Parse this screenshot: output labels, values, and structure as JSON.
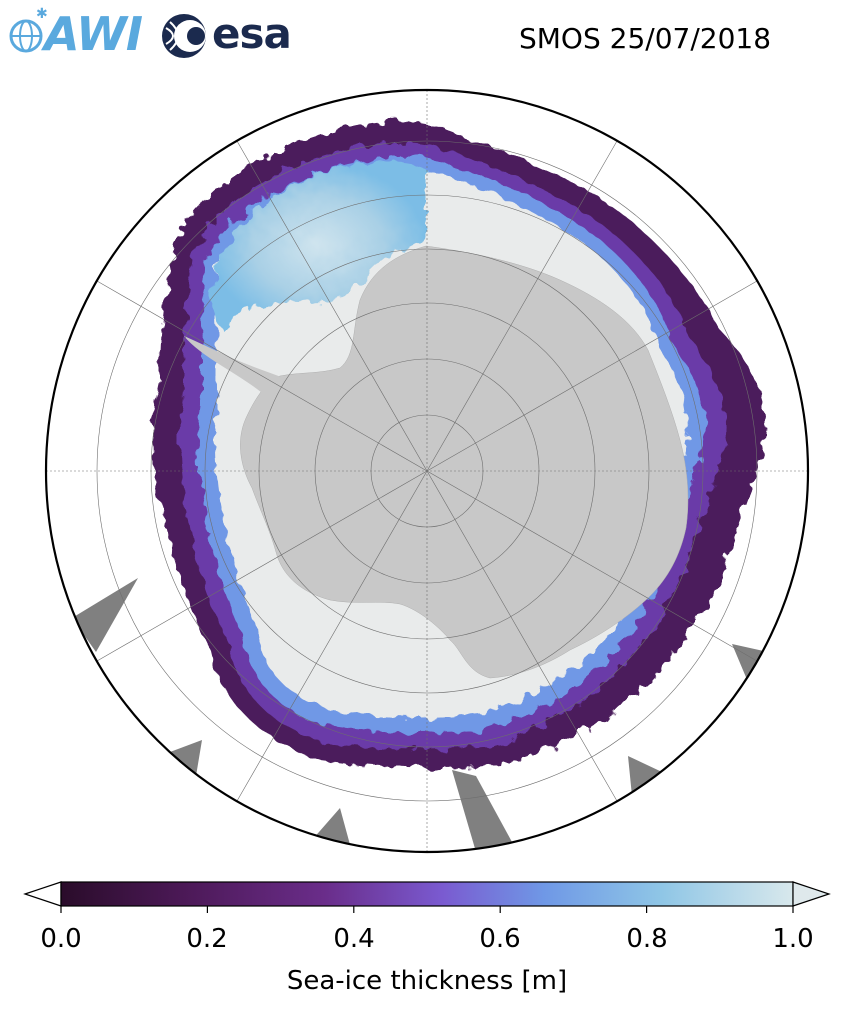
{
  "header": {
    "title": "SMOS 25/07/2018",
    "logos": [
      {
        "name": "awi-logo",
        "text": "AWI",
        "color": "#5aa9de"
      },
      {
        "name": "esa-logo",
        "text": "esa",
        "color": "#1b2a4e"
      }
    ]
  },
  "map": {
    "projection": "south-polar-stereographic",
    "region": "Antarctica / Southern Ocean",
    "graticule": true,
    "colors": {
      "land": "#c8c8c8",
      "thick_ice": "#e9ebeb",
      "ice_edge": "#4b1f5c",
      "mid_ice": "#6fa2e6",
      "no_data": "#808080",
      "ocean": "#ffffff"
    }
  },
  "colorbar": {
    "label": "Sea-ice thickness [m]",
    "ticks": [
      "0.0",
      "0.2",
      "0.4",
      "0.6",
      "0.8",
      "1.0"
    ],
    "min": 0.0,
    "max": 1.0,
    "extend": "both",
    "colormap_stops": [
      "#2a0c2a",
      "#4e1a5a",
      "#6a2d8a",
      "#7a5ad0",
      "#6f98e6",
      "#8fc6e6",
      "#d8e8ec"
    ]
  }
}
